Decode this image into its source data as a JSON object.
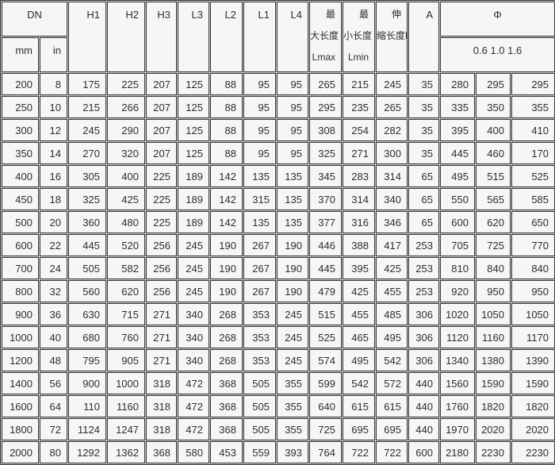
{
  "table": {
    "header": {
      "dn": "DN",
      "dn_units": [
        "mm",
        "in"
      ],
      "dims": [
        "H1",
        "H2",
        "H3",
        "L3",
        "L2",
        "L1",
        "L4"
      ],
      "max_length": [
        "最",
        "大长度",
        "Lmax"
      ],
      "min_length": [
        "最",
        "小长度",
        "Lmin"
      ],
      "stroke_length": [
        "伸",
        "缩长度L"
      ],
      "a": "A",
      "phi": "Φ",
      "phi_pressures": "0.6 1.0 1.6"
    },
    "rows": [
      [
        200,
        8,
        175,
        225,
        207,
        125,
        88,
        95,
        95,
        265,
        215,
        245,
        35,
        280,
        295,
        295
      ],
      [
        250,
        10,
        215,
        266,
        207,
        125,
        88,
        95,
        95,
        295,
        235,
        265,
        35,
        335,
        350,
        355
      ],
      [
        300,
        12,
        245,
        290,
        207,
        125,
        88,
        95,
        95,
        308,
        254,
        282,
        35,
        395,
        400,
        410
      ],
      [
        350,
        14,
        270,
        320,
        207,
        125,
        88,
        95,
        95,
        325,
        271,
        300,
        35,
        445,
        460,
        170
      ],
      [
        400,
        16,
        305,
        400,
        225,
        189,
        142,
        135,
        135,
        345,
        283,
        314,
        65,
        495,
        515,
        525
      ],
      [
        450,
        18,
        325,
        425,
        225,
        189,
        142,
        315,
        135,
        370,
        314,
        340,
        65,
        550,
        565,
        585
      ],
      [
        500,
        20,
        360,
        480,
        225,
        189,
        142,
        135,
        135,
        377,
        316,
        346,
        65,
        600,
        620,
        650
      ],
      [
        600,
        22,
        445,
        520,
        256,
        245,
        190,
        267,
        190,
        446,
        388,
        417,
        253,
        705,
        725,
        770
      ],
      [
        700,
        24,
        505,
        582,
        256,
        245,
        190,
        267,
        190,
        445,
        395,
        425,
        253,
        810,
        840,
        840
      ],
      [
        800,
        32,
        560,
        620,
        256,
        245,
        190,
        267,
        190,
        479,
        425,
        455,
        253,
        920,
        950,
        950
      ],
      [
        900,
        36,
        630,
        715,
        271,
        340,
        268,
        353,
        245,
        515,
        455,
        485,
        306,
        1020,
        1050,
        1050
      ],
      [
        1000,
        40,
        680,
        760,
        271,
        340,
        268,
        353,
        245,
        525,
        465,
        495,
        306,
        1120,
        1160,
        1170
      ],
      [
        1200,
        48,
        795,
        905,
        271,
        340,
        268,
        353,
        245,
        574,
        495,
        542,
        306,
        1340,
        1380,
        1390
      ],
      [
        1400,
        56,
        900,
        1000,
        318,
        472,
        368,
        505,
        355,
        599,
        542,
        572,
        440,
        1560,
        1590,
        1590
      ],
      [
        1600,
        64,
        110,
        1160,
        318,
        472,
        368,
        505,
        355,
        640,
        615,
        615,
        440,
        1760,
        1820,
        1820
      ],
      [
        1800,
        72,
        1124,
        1247,
        318,
        472,
        368,
        505,
        355,
        725,
        695,
        695,
        440,
        1970,
        2020,
        2020
      ],
      [
        2000,
        80,
        1292,
        1362,
        368,
        580,
        453,
        559,
        393,
        764,
        722,
        722,
        600,
        2180,
        2230,
        2230
      ]
    ]
  },
  "colors": {
    "cell_bg": "#f6f6f6",
    "border_dark": "#3a3a3a",
    "grid_gap": "#c9c9c9",
    "text": "#2e2e2e"
  }
}
